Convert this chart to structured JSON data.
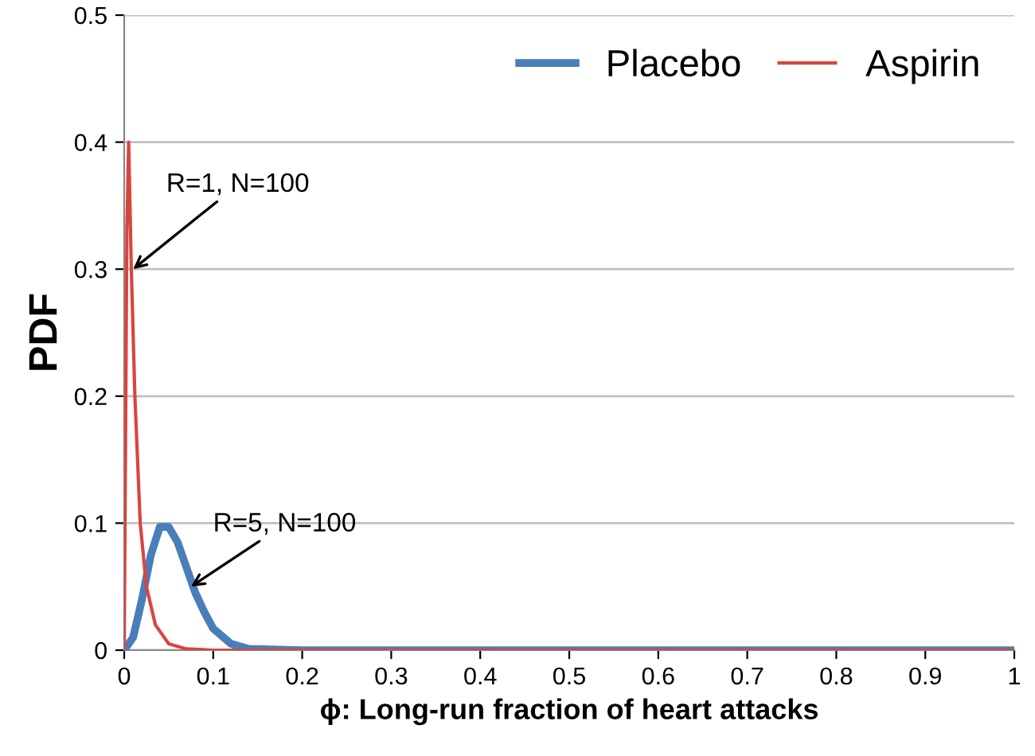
{
  "chart_data": {
    "type": "line",
    "xlabel": "ϕ: Long-run fraction of heart attacks",
    "ylabel": "PDF",
    "xlim": [
      0,
      1
    ],
    "xticks": [
      0,
      0.1,
      0.2,
      0.3,
      0.4,
      0.5,
      0.6,
      0.7,
      0.8,
      0.9,
      1
    ],
    "ylim": [
      0,
      0.5
    ],
    "yticks": [
      0,
      0.1,
      0.2,
      0.3,
      0.4,
      0.5
    ],
    "grid": "y",
    "legend": "top right",
    "series": [
      {
        "name": "Placebo",
        "color": "#4a7ebb",
        "x": [
          0,
          0.01,
          0.02,
          0.03,
          0.04,
          0.05,
          0.06,
          0.07,
          0.08,
          0.09,
          0.1,
          0.12,
          0.14,
          0.2,
          0.5,
          1
        ],
        "values": [
          0,
          0.01,
          0.04,
          0.075,
          0.097,
          0.097,
          0.085,
          0.065,
          0.045,
          0.03,
          0.017,
          0.005,
          0.001,
          0,
          0,
          0
        ]
      },
      {
        "name": "Aspirin",
        "color": "#d9453d",
        "x": [
          0,
          0.003,
          0.005,
          0.008,
          0.012,
          0.018,
          0.025,
          0.035,
          0.05,
          0.07,
          0.1,
          0.5,
          1
        ],
        "values": [
          0,
          0.33,
          0.4,
          0.3,
          0.2,
          0.1,
          0.05,
          0.02,
          0.005,
          0.001,
          0,
          0,
          0
        ]
      }
    ],
    "annotations": [
      {
        "text": "R=1, N=100",
        "x": 0.01,
        "y": 0.3
      },
      {
        "text": "R=5, N=100",
        "x": 0.075,
        "y": 0.05
      }
    ]
  }
}
